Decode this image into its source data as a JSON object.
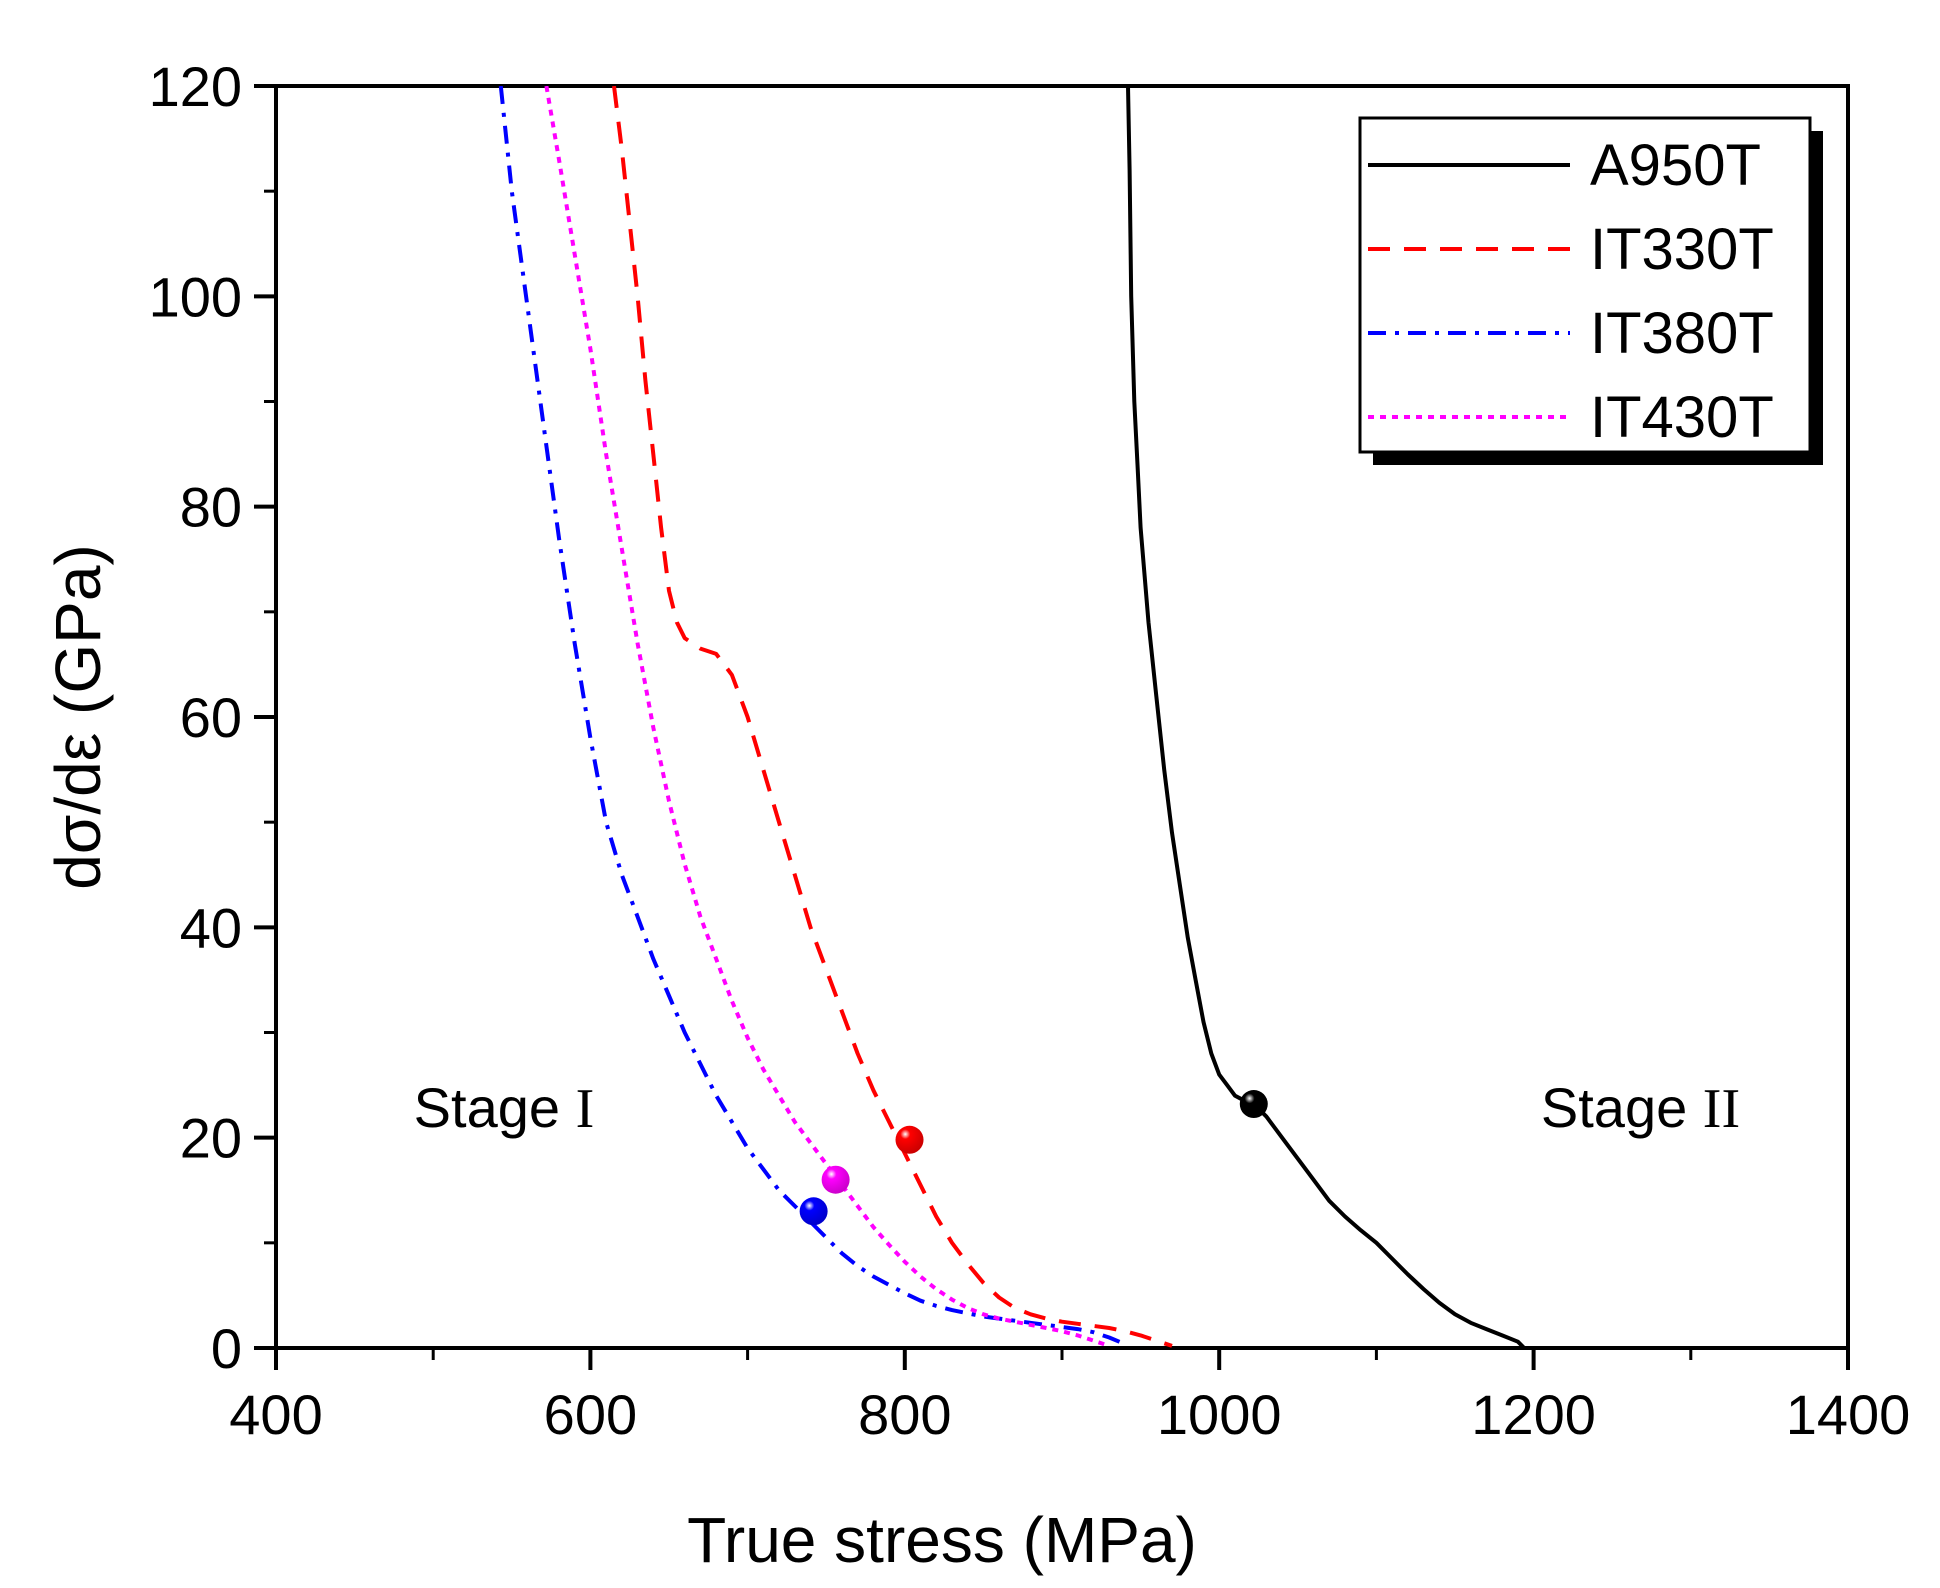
{
  "chart_data": {
    "type": "line",
    "xlabel": "True stress (MPa)",
    "ylabel": "dσ/dε (GPa)",
    "xlim": [
      400,
      1400
    ],
    "ylim": [
      0,
      120
    ],
    "xticks": [
      400,
      600,
      800,
      1000,
      1200,
      1400
    ],
    "yticks": [
      0,
      20,
      40,
      60,
      80,
      100,
      120
    ],
    "legend_position": "top-right",
    "series": [
      {
        "name": "A950T",
        "color": "#000000",
        "style": "solid",
        "x": [
          942,
          943,
          944,
          946,
          948,
          950,
          955,
          960,
          965,
          970,
          975,
          980,
          985,
          990,
          995,
          1000,
          1005,
          1010,
          1015,
          1022,
          1030,
          1040,
          1050,
          1060,
          1070,
          1080,
          1090,
          1100,
          1110,
          1120,
          1130,
          1140,
          1150,
          1160,
          1170,
          1180,
          1190,
          1194
        ],
        "y": [
          120,
          112,
          100,
          90,
          84,
          78,
          69,
          62,
          55,
          49,
          44,
          39,
          35,
          31,
          28,
          26,
          25,
          24,
          23.6,
          23.2,
          22,
          20,
          18,
          16,
          14,
          12.5,
          11.2,
          10,
          8.5,
          7,
          5.6,
          4.3,
          3.2,
          2.4,
          1.8,
          1.2,
          0.6,
          0
        ]
      },
      {
        "name": "IT330T",
        "color": "#ff0000",
        "style": "dashed",
        "x": [
          615,
          620,
          625,
          630,
          635,
          640,
          645,
          650,
          655,
          660,
          670,
          680,
          690,
          700,
          710,
          720,
          730,
          740,
          750,
          760,
          770,
          780,
          790,
          800,
          810,
          820,
          830,
          840,
          850,
          860,
          870,
          880,
          890,
          900,
          910,
          920,
          930,
          940,
          950,
          960,
          970
        ],
        "y": [
          120,
          114,
          107,
          100,
          92,
          85,
          78,
          72,
          69,
          67.5,
          66.5,
          66,
          64,
          60,
          55,
          50,
          45,
          40,
          36,
          32,
          28,
          24.5,
          21.5,
          18.5,
          15.5,
          12.5,
          10,
          8,
          6.2,
          4.8,
          3.8,
          3.2,
          2.8,
          2.5,
          2.3,
          2.1,
          1.9,
          1.6,
          1.2,
          0.7,
          0.2
        ]
      },
      {
        "name": "IT380T",
        "color": "#0000ff",
        "style": "dashdot",
        "x": [
          543,
          550,
          560,
          570,
          580,
          590,
          600,
          610,
          620,
          630,
          640,
          650,
          660,
          670,
          680,
          690,
          700,
          710,
          720,
          730,
          740,
          750,
          760,
          770,
          780,
          790,
          800,
          810,
          820,
          830,
          840,
          850,
          860,
          870,
          880,
          890,
          900,
          910,
          920,
          930,
          938
        ],
        "y": [
          120,
          110,
          99,
          88,
          77,
          67,
          58,
          50,
          45,
          41,
          37,
          33.5,
          30,
          27,
          24,
          21.5,
          19,
          17,
          15,
          13.5,
          12,
          10.5,
          9,
          7.8,
          6.8,
          6,
          5.2,
          4.5,
          4,
          3.6,
          3.3,
          3,
          2.8,
          2.6,
          2.4,
          2.2,
          2,
          1.8,
          1.5,
          1,
          0.5
        ]
      },
      {
        "name": "IT430T",
        "color": "#ff00ff",
        "style": "dotted",
        "x": [
          572,
          580,
          590,
          600,
          610,
          620,
          630,
          640,
          650,
          660,
          670,
          680,
          690,
          700,
          710,
          720,
          730,
          740,
          750,
          760,
          770,
          780,
          790,
          800,
          810,
          820,
          830,
          840,
          850,
          860,
          870,
          880,
          890,
          900,
          910,
          920,
          930
        ],
        "y": [
          120,
          113,
          104,
          95,
          85,
          76,
          67,
          59,
          52,
          46,
          41,
          37,
          33,
          29.5,
          26.5,
          24,
          21.5,
          19.5,
          17.5,
          15.5,
          13.5,
          11.5,
          9.8,
          8.2,
          6.8,
          5.6,
          4.6,
          3.8,
          3.2,
          2.8,
          2.5,
          2.2,
          1.9,
          1.6,
          1.2,
          0.7,
          0.2
        ]
      }
    ],
    "markers": [
      {
        "series": "A950T",
        "x": 1022,
        "y": 23.2,
        "color": "#000000"
      },
      {
        "series": "IT330T",
        "x": 803,
        "y": 19.8,
        "color": "#ff0000"
      },
      {
        "series": "IT380T",
        "x": 742,
        "y": 13.0,
        "color": "#0000ff"
      },
      {
        "series": "IT430T",
        "x": 756,
        "y": 16.0,
        "color": "#ff00ff"
      }
    ],
    "annotations": [
      {
        "label": "Stage ",
        "numeral": "I",
        "x": 545,
        "y": 21
      },
      {
        "label": "Stage ",
        "numeral": "II",
        "x": 1268,
        "y": 21
      }
    ]
  }
}
